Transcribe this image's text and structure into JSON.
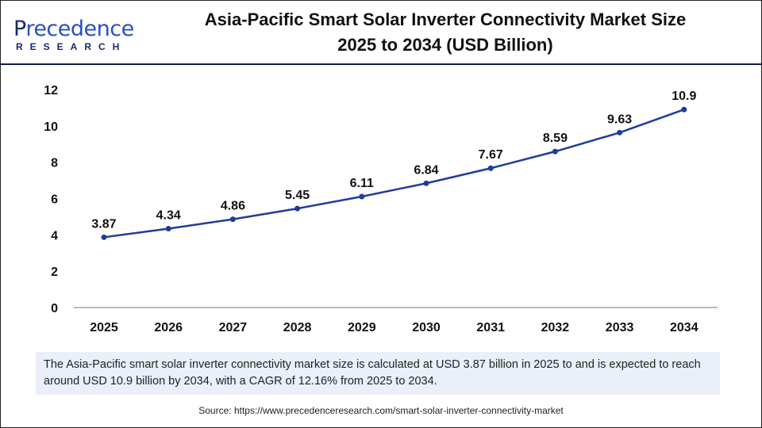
{
  "logo": {
    "brand_first": "P",
    "brand_rest": "recedence",
    "sub": "RESEARCH"
  },
  "header": {
    "title_line1": "Asia-Pacific Smart Solar Inverter Connectivity Market Size",
    "title_line2": "2025 to 2034 (USD Billion)"
  },
  "chart_data": {
    "type": "line",
    "title": "Asia-Pacific Smart Solar Inverter Connectivity Market Size 2025 to 2034 (USD Billion)",
    "categories": [
      "2025",
      "2026",
      "2027",
      "2028",
      "2029",
      "2030",
      "2031",
      "2032",
      "2033",
      "2034"
    ],
    "series": [
      {
        "values": [
          3.87,
          4.34,
          4.86,
          5.45,
          6.11,
          6.84,
          7.67,
          8.59,
          9.63,
          10.9
        ],
        "color": "#1f3c9c"
      }
    ],
    "yticks": [
      "0",
      "2",
      "4",
      "6",
      "8",
      "10",
      "12"
    ],
    "ylim": [
      0,
      12
    ],
    "grid": false,
    "data_labels": [
      "3.87",
      "4.34",
      "4.86",
      "5.45",
      "6.11",
      "6.84",
      "7.67",
      "8.59",
      "9.63",
      "10.9"
    ]
  },
  "note": "The Asia-Pacific smart solar inverter connectivity market size is calculated at USD 3.87 billion in 2025 to and is expected to reach around USD 10.9 billion by 2034, with a CAGR of 12.16% from 2025 to 2034.",
  "source": "Source: https://www.precedenceresearch.com/smart-solar-inverter-connectivity-market"
}
